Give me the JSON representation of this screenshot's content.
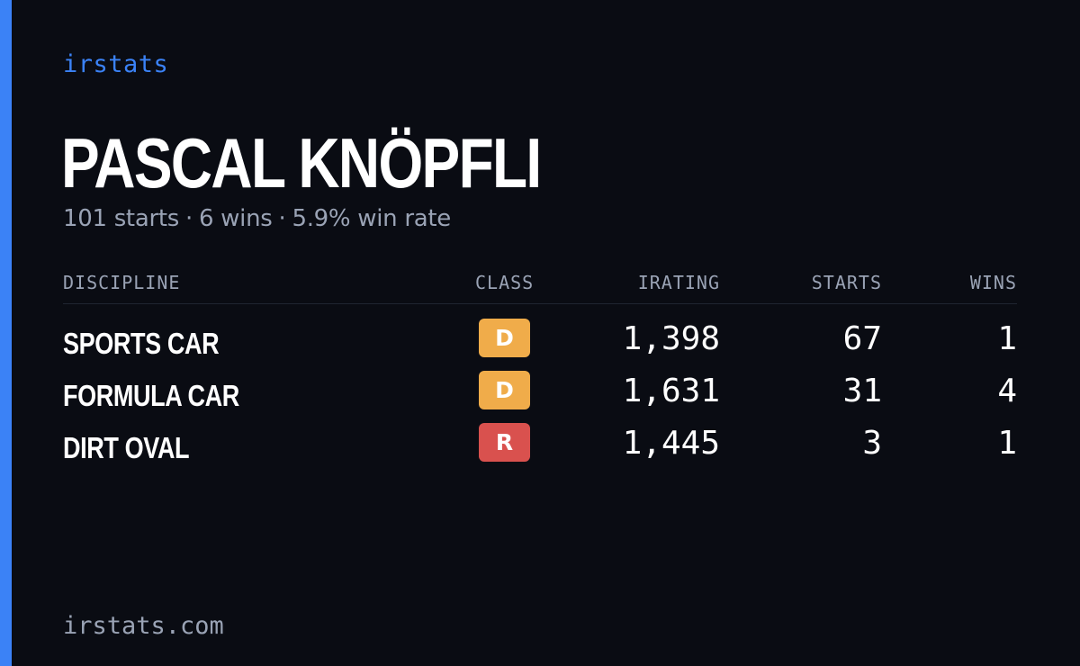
{
  "brand": "irstats",
  "driver": {
    "name": "PASCAL KNÖPFLI",
    "starts": "101 starts",
    "wins": "6 wins",
    "win_rate": "5.9% win rate",
    "separator": "·"
  },
  "table": {
    "headers": {
      "discipline": "DISCIPLINE",
      "class": "CLASS",
      "irating": "IRATING",
      "starts": "STARTS",
      "wins": "WINS"
    },
    "rows": [
      {
        "discipline": "SPORTS CAR",
        "class": "D",
        "class_color": "#f0ac4a",
        "irating": "1,398",
        "starts": "67",
        "wins": "1"
      },
      {
        "discipline": "FORMULA CAR",
        "class": "D",
        "class_color": "#f0ac4a",
        "irating": "1,631",
        "starts": "31",
        "wins": "4"
      },
      {
        "discipline": "DIRT OVAL",
        "class": "R",
        "class_color": "#d9514e",
        "irating": "1,445",
        "starts": "3",
        "wins": "1"
      }
    ]
  },
  "footer": "irstats.com",
  "colors": {
    "accent": "#3b82f6",
    "background": "#0a0c13",
    "muted": "#9aa3b5"
  }
}
